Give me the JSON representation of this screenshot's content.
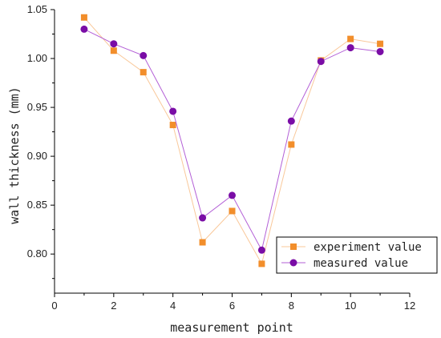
{
  "chart_data": {
    "type": "line",
    "title": "",
    "xlabel": "measurement point",
    "ylabel": "wall thickness (mm)",
    "xlim": [
      0,
      12
    ],
    "ylim": [
      0.76,
      1.05
    ],
    "x_ticks": [
      0,
      2,
      4,
      6,
      8,
      10,
      12
    ],
    "x_tick_labels": [
      "0",
      "2",
      "4",
      "6",
      "8",
      "10",
      "12"
    ],
    "y_ticks": [
      0.8,
      0.85,
      0.9,
      0.95,
      1.0,
      1.05
    ],
    "y_tick_labels": [
      "0.80",
      "0.85",
      "0.90",
      "0.95",
      "1.00",
      "1.05"
    ],
    "grid": false,
    "legend_position": "bottom-right",
    "series": [
      {
        "name": "experiment value",
        "marker": "square",
        "color": "#F28E2B",
        "line_color": "#F9C89A",
        "x": [
          1,
          2,
          3,
          4,
          5,
          6,
          7,
          8,
          9,
          10,
          11
        ],
        "y": [
          1.042,
          1.008,
          0.986,
          0.932,
          0.812,
          0.844,
          0.79,
          0.912,
          0.998,
          1.02,
          1.015
        ]
      },
      {
        "name": "measured value",
        "marker": "circle",
        "color": "#7A0DA6",
        "line_color": "#B35FD6",
        "x": [
          1,
          2,
          3,
          4,
          5,
          6,
          7,
          8,
          9,
          10,
          11
        ],
        "y": [
          1.03,
          1.015,
          1.003,
          0.946,
          0.837,
          0.86,
          0.804,
          0.936,
          0.997,
          1.011,
          1.007
        ]
      }
    ]
  }
}
